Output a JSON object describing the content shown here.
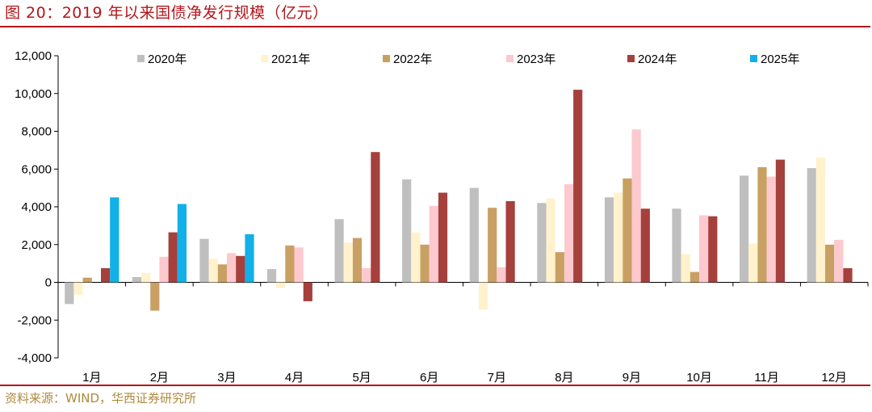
{
  "title": "图 20：2019 年以来国债净发行规模（亿元）",
  "source": "资料来源：WIND，华西证券研究所",
  "chart_data": {
    "type": "bar",
    "categories": [
      "1月",
      "2月",
      "3月",
      "4月",
      "5月",
      "6月",
      "7月",
      "8月",
      "9月",
      "10月",
      "11月",
      "12月"
    ],
    "ylim": [
      -4000,
      12000
    ],
    "yticks": [
      -4000,
      -2000,
      0,
      2000,
      4000,
      6000,
      8000,
      10000,
      12000
    ],
    "ytick_labels": [
      "-4,000",
      "-2,000",
      "0",
      "2,000",
      "4,000",
      "6,000",
      "8,000",
      "10,000",
      "12,000"
    ],
    "grid": false,
    "legend_position": "top",
    "series": [
      {
        "name": "2020年",
        "color": "#bfbfbf",
        "values": [
          -1150,
          280,
          2300,
          700,
          3350,
          5450,
          5000,
          4200,
          4500,
          3900,
          5650,
          6050
        ]
      },
      {
        "name": "2021年",
        "color": "#fff2cc",
        "values": [
          -650,
          500,
          1250,
          -300,
          2100,
          2650,
          -1450,
          4450,
          4750,
          1500,
          2050,
          6600
        ]
      },
      {
        "name": "2022年",
        "color": "#c9a063",
        "values": [
          250,
          -1500,
          950,
          1950,
          2350,
          2000,
          3950,
          1600,
          5500,
          550,
          6100,
          2000
        ]
      },
      {
        "name": "2023年",
        "color": "#fcc9ce",
        "values": [
          null,
          1350,
          1550,
          1850,
          750,
          4050,
          800,
          5200,
          8100,
          3550,
          5600,
          2250
        ]
      },
      {
        "name": "2024年",
        "color": "#a5403c",
        "values": [
          750,
          2650,
          1400,
          -1000,
          6900,
          4750,
          4300,
          10200,
          3900,
          3500,
          6500,
          750
        ]
      },
      {
        "name": "2025年",
        "color": "#12b0e8",
        "values": [
          4500,
          4150,
          2550,
          null,
          null,
          null,
          null,
          null,
          null,
          null,
          null,
          null
        ]
      }
    ]
  }
}
